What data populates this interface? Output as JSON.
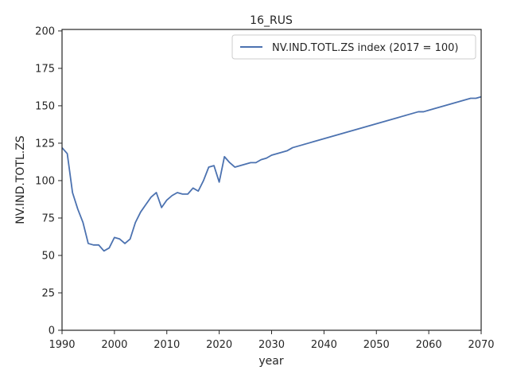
{
  "chart_data": {
    "type": "line",
    "title": "16_RUS",
    "xlabel": "year",
    "ylabel": "NV.IND.TOTL.ZS",
    "xlim": [
      1990,
      2070
    ],
    "ylim": [
      0,
      201
    ],
    "xticks": [
      1990,
      2000,
      2010,
      2020,
      2030,
      2040,
      2050,
      2060,
      2070
    ],
    "yticks": [
      0,
      25,
      50,
      75,
      100,
      125,
      150,
      175,
      200
    ],
    "grid": false,
    "legend_position": "top-right",
    "series": [
      {
        "name": "NV.IND.TOTL.ZS index (2017 = 100)",
        "color": "#4c72b0",
        "x": [
          1990,
          1991,
          1992,
          1993,
          1994,
          1995,
          1996,
          1997,
          1998,
          1999,
          2000,
          2001,
          2002,
          2003,
          2004,
          2005,
          2006,
          2007,
          2008,
          2009,
          2010,
          2011,
          2012,
          2013,
          2014,
          2015,
          2016,
          2017,
          2018,
          2019,
          2020,
          2021,
          2022,
          2023,
          2024,
          2025,
          2026,
          2027,
          2028,
          2029,
          2030,
          2031,
          2032,
          2033,
          2034,
          2035,
          2036,
          2037,
          2038,
          2039,
          2040,
          2041,
          2042,
          2043,
          2044,
          2045,
          2046,
          2047,
          2048,
          2049,
          2050,
          2051,
          2052,
          2053,
          2054,
          2055,
          2056,
          2057,
          2058,
          2059,
          2060,
          2061,
          2062,
          2063,
          2064,
          2065,
          2066,
          2067,
          2068,
          2069,
          2070
        ],
        "y": [
          122,
          118,
          92,
          81,
          72,
          58,
          57,
          57,
          53,
          55,
          62,
          61,
          58,
          61,
          72,
          79,
          84,
          89,
          92,
          82,
          87,
          90,
          92,
          91,
          91,
          95,
          93,
          100,
          109,
          110,
          99,
          116,
          112,
          109,
          110,
          111,
          112,
          112,
          114,
          115,
          117,
          118,
          119,
          120,
          122,
          123,
          124,
          125,
          126,
          127,
          128,
          129,
          130,
          131,
          132,
          133,
          134,
          135,
          136,
          137,
          138,
          139,
          140,
          141,
          142,
          143,
          144,
          145,
          146,
          146,
          147,
          148,
          149,
          150,
          151,
          152,
          153,
          154,
          155,
          155,
          156
        ]
      }
    ]
  }
}
